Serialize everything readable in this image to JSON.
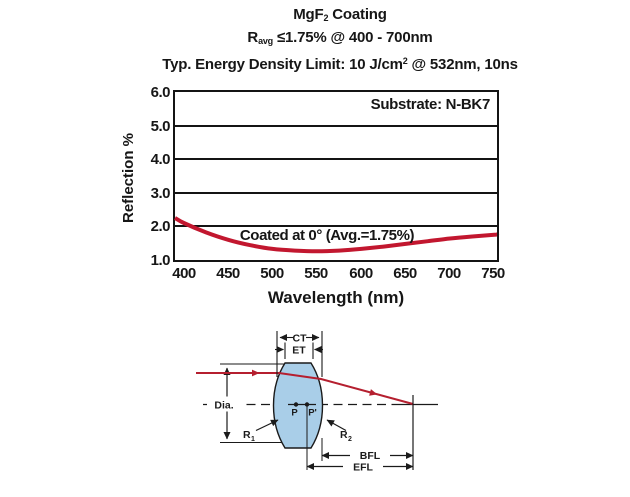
{
  "colors": {
    "curve": "#c2172f",
    "ray": "#b51f2f",
    "lens_fill": "#a9cee8",
    "line": "#1a1a1a"
  },
  "header": {
    "title_pre": "MgF",
    "title_sub": "2",
    "title_post": " Coating",
    "spec_pre": "R",
    "spec_sub": "avg",
    "spec_post": " ≤1.75% @ 400 - 700nm",
    "energy_pre": "Typ. Energy Density Limit: 10 J/cm",
    "energy_sup": "2",
    "energy_post": " @ 532nm, 10ns"
  },
  "chart": {
    "ylabel": "Reflection %",
    "xlabel": "Wavelength (nm)",
    "substrate_label": "Substrate: N-BK7",
    "curve_label": "Coated at 0° (Avg.=1.75%)",
    "y_ticks": [
      "6.0",
      "5.0",
      "4.0",
      "3.0",
      "2.0",
      "1.0"
    ],
    "x_ticks": [
      "400",
      "450",
      "500",
      "550",
      "600",
      "650",
      "700",
      "750"
    ]
  },
  "chart_data": {
    "type": "line",
    "title": "MgF2 Coating",
    "subtitle": "Ravg ≤1.75% @ 400 - 700nm",
    "note": "Typ. Energy Density Limit: 10 J/cm2 @ 532nm, 10ns",
    "xlabel": "Wavelength (nm)",
    "ylabel": "Reflection %",
    "xlim": [
      390,
      753
    ],
    "ylim": [
      1.0,
      6.0
    ],
    "x": [
      390,
      400,
      425,
      450,
      475,
      500,
      525,
      550,
      575,
      600,
      625,
      650,
      675,
      700,
      725,
      750,
      753
    ],
    "y": [
      2.25,
      2.1,
      1.82,
      1.6,
      1.44,
      1.33,
      1.28,
      1.26,
      1.28,
      1.33,
      1.4,
      1.48,
      1.56,
      1.64,
      1.7,
      1.75,
      1.76
    ],
    "series_label": "Coated at 0° (Avg.=1.75%)",
    "annotation": "Substrate: N-BK7",
    "grid": "horizontal-only",
    "legend": "none",
    "line_color": "#c2172f"
  },
  "diagram": {
    "ct_label": "CT",
    "et_label": "ET",
    "dia_label": "Dia.",
    "p_label": "P",
    "p_prime_label": "P'",
    "r1_pre": "R",
    "r1_sub": "1",
    "r2_pre": "R",
    "r2_sub": "2",
    "bfl_label": "BFL",
    "efl_label": "EFL"
  }
}
